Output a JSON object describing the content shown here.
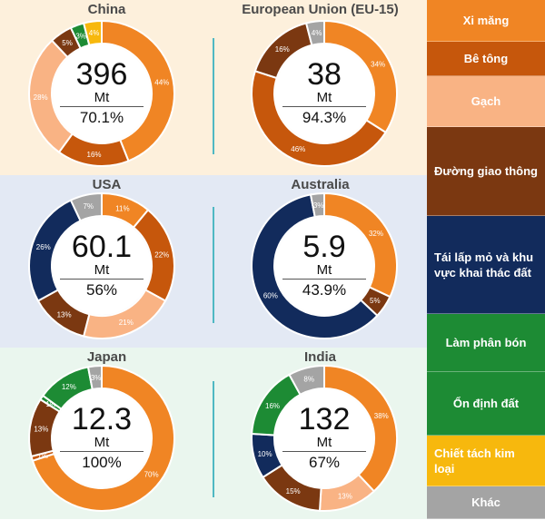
{
  "bands": [
    "#fdf0dc",
    "#e3e9f4",
    "#eaf6ee"
  ],
  "legend": [
    {
      "label": "Xi măng",
      "color": "#f08524"
    },
    {
      "label": "Bê tông",
      "color": "#c6570c"
    },
    {
      "label": "Gạch",
      "color": "#f9b384"
    },
    {
      "label": "Đường giao thông",
      "color": "#7b3811"
    },
    {
      "label": "Tái lấp mỏ và khu vực khai thác đất",
      "color": "#122b5c"
    },
    {
      "label": "Làm phân bón",
      "color": "#1d8b34"
    },
    {
      "label": "Ổn định đất",
      "color": "#1d8b34"
    },
    {
      "label": "Chiết tách kim loại",
      "color": "#f7b80d"
    },
    {
      "label": "Khác",
      "color": "#a4a4a4"
    }
  ],
  "chart_data": [
    {
      "type": "pie",
      "title": "China",
      "total": "396",
      "unit": "Mt",
      "percent": "70.1%",
      "slices": [
        {
          "category": "Xi măng",
          "value": 44,
          "label": "44%"
        },
        {
          "category": "Bê tông",
          "value": 16,
          "label": "16%"
        },
        {
          "category": "Gạch",
          "value": 28,
          "label": "28%"
        },
        {
          "category": "Đường giao thông",
          "value": 5,
          "label": "5%"
        },
        {
          "category": "Làm phân bón",
          "value": 3,
          "label": "3%"
        },
        {
          "category": "Chiết tách kim loại",
          "value": 4,
          "label": "4%"
        }
      ]
    },
    {
      "type": "pie",
      "title": "European Union (EU-15)",
      "total": "38",
      "unit": "Mt",
      "percent": "94.3%",
      "slices": [
        {
          "category": "Xi măng",
          "value": 34,
          "label": "34%"
        },
        {
          "category": "Bê tông",
          "value": 46,
          "label": "46%"
        },
        {
          "category": "Đường giao thông",
          "value": 16,
          "label": "16%"
        },
        {
          "category": "Khác",
          "value": 4,
          "label": "4%"
        }
      ]
    },
    {
      "type": "pie",
      "title": "USA",
      "total": "60.1",
      "unit": "Mt",
      "percent": "56%",
      "slices": [
        {
          "category": "Xi măng",
          "value": 11,
          "label": "11%"
        },
        {
          "category": "Bê tông",
          "value": 22,
          "label": "22%"
        },
        {
          "category": "Gạch",
          "value": 21,
          "label": "21%"
        },
        {
          "category": "Đường giao thông",
          "value": 13,
          "label": "13%"
        },
        {
          "category": "Tái lấp mỏ và khu vực khai thác đất",
          "value": 26,
          "label": "26%"
        },
        {
          "category": "Khác",
          "value": 7,
          "label": "7%"
        }
      ]
    },
    {
      "type": "pie",
      "title": "Australia",
      "total": "5.9",
      "unit": "Mt",
      "percent": "43.9%",
      "slices": [
        {
          "category": "Xi măng",
          "value": 32,
          "label": "32%"
        },
        {
          "category": "Đường giao thông",
          "value": 5,
          "label": "5%"
        },
        {
          "category": "Tái lấp mỏ và khu vực khai thác đất",
          "value": 60,
          "label": "60%"
        },
        {
          "category": "Khác",
          "value": 3,
          "label": "3%"
        }
      ]
    },
    {
      "type": "pie",
      "title": "Japan",
      "total": "12.3",
      "unit": "Mt",
      "percent": "100%",
      "slices": [
        {
          "category": "Xi măng",
          "value": 70,
          "label": "70%"
        },
        {
          "category": "Bê tông",
          "value": 1,
          "label": "1%"
        },
        {
          "category": "Đường giao thông",
          "value": 13,
          "label": "13%"
        },
        {
          "category": "Làm phân bón",
          "value": 1,
          "label": "1%"
        },
        {
          "category": "Ổn định đất",
          "value": 12,
          "label": "12%"
        },
        {
          "category": "Khác",
          "value": 3,
          "label": "3%"
        }
      ]
    },
    {
      "type": "pie",
      "title": "India",
      "total": "132",
      "unit": "Mt",
      "percent": "67%",
      "slices": [
        {
          "category": "Xi măng",
          "value": 38,
          "label": "38%"
        },
        {
          "category": "Gạch",
          "value": 13,
          "label": "13%"
        },
        {
          "category": "Đường giao thông",
          "value": 15,
          "label": "15%"
        },
        {
          "category": "Tái lấp mỏ và khu vực khai thác đất",
          "value": 10,
          "label": "10%"
        },
        {
          "category": "Ổn định đất",
          "value": 16,
          "label": "16%"
        },
        {
          "category": "Khác",
          "value": 8,
          "label": "8%"
        }
      ]
    }
  ]
}
